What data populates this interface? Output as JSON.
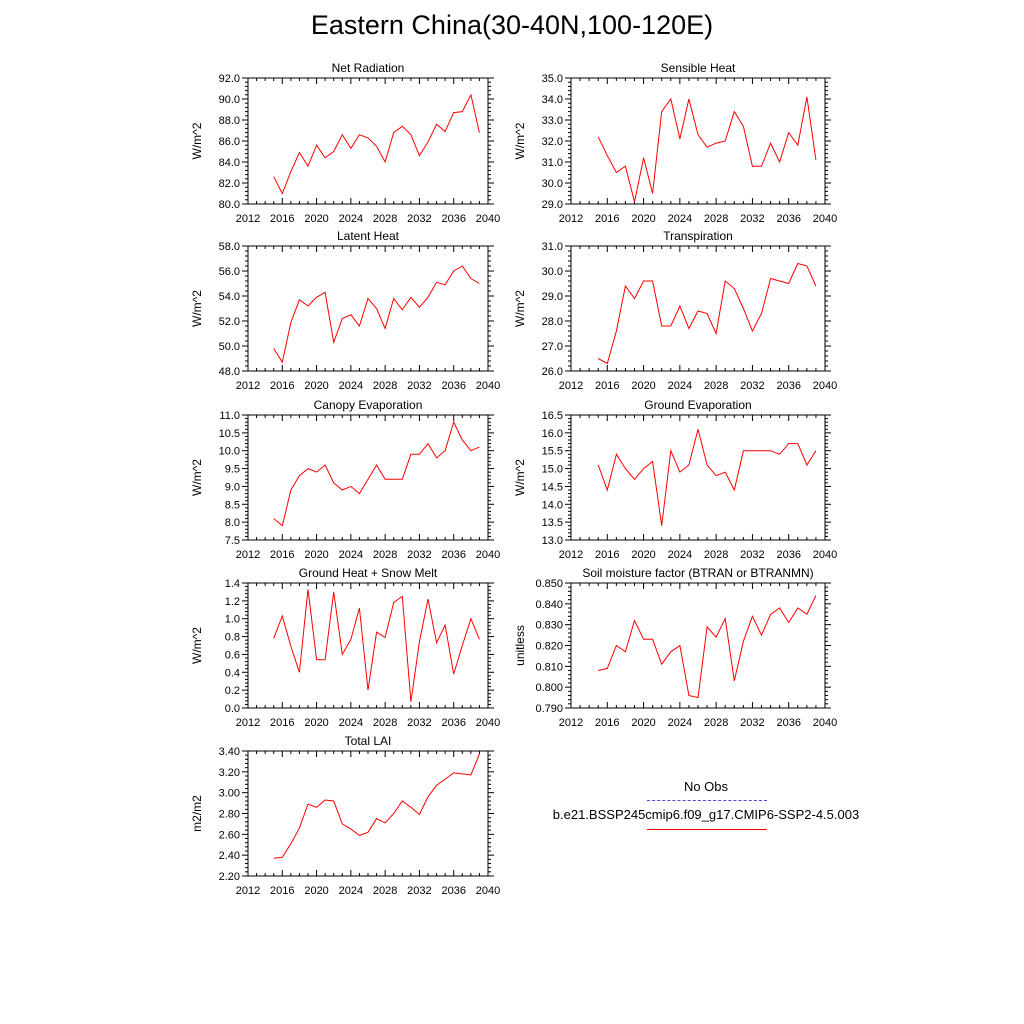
{
  "title": "Eastern China(30-40N,100-120E)",
  "legend": {
    "obs_label": "No Obs",
    "model_label": "b.e21.BSSP245cmip6.f09_g17.CMIP6-SSP2-4.5.003",
    "obs_color": "#4b4bdc",
    "model_color": "#ff0000"
  },
  "chart_data": [
    {
      "type": "line",
      "title": "Net Radiation",
      "ylabel": "W/m^2",
      "xlim": [
        2012,
        2040
      ],
      "ylim": [
        80.0,
        92.0
      ],
      "xticks": [
        "2012",
        "2016",
        "2020",
        "2024",
        "2028",
        "2032",
        "2036",
        "2040"
      ],
      "yticks": [
        "80.0",
        "82.0",
        "84.0",
        "86.0",
        "88.0",
        "90.0",
        "92.0"
      ],
      "x": [
        2015,
        2016,
        2017,
        2018,
        2019,
        2020,
        2021,
        2022,
        2023,
        2024,
        2025,
        2026,
        2027,
        2028,
        2029,
        2030,
        2031,
        2032,
        2033,
        2034,
        2035,
        2036,
        2037,
        2038,
        2039
      ],
      "series": [
        {
          "values": [
            82.6,
            81.0,
            83.1,
            84.9,
            83.6,
            85.6,
            84.4,
            85.0,
            86.6,
            85.3,
            86.6,
            86.3,
            85.5,
            84.0,
            86.8,
            87.4,
            86.6,
            84.6,
            85.9,
            87.6,
            86.9,
            88.7,
            88.8,
            90.4,
            86.8
          ]
        }
      ]
    },
    {
      "type": "line",
      "title": "Sensible Heat",
      "ylabel": "W/m^2",
      "xlim": [
        2012,
        2040
      ],
      "ylim": [
        29.0,
        35.0
      ],
      "xticks": [
        "2012",
        "2016",
        "2020",
        "2024",
        "2028",
        "2032",
        "2036",
        "2040"
      ],
      "yticks": [
        "29.0",
        "30.0",
        "31.0",
        "32.0",
        "33.0",
        "34.0",
        "35.0"
      ],
      "x": [
        2015,
        2016,
        2017,
        2018,
        2019,
        2020,
        2021,
        2022,
        2023,
        2024,
        2025,
        2026,
        2027,
        2028,
        2029,
        2030,
        2031,
        2032,
        2033,
        2034,
        2035,
        2036,
        2037,
        2038,
        2039
      ],
      "series": [
        {
          "values": [
            32.2,
            31.3,
            30.5,
            30.8,
            29.1,
            31.2,
            29.5,
            33.4,
            34.0,
            32.1,
            34.0,
            32.3,
            31.7,
            31.9,
            32.0,
            33.4,
            32.7,
            30.8,
            30.8,
            31.9,
            31.0,
            32.4,
            31.8,
            34.1,
            31.1
          ]
        }
      ]
    },
    {
      "type": "line",
      "title": "Latent Heat",
      "ylabel": "W/m^2",
      "xlim": [
        2012,
        2040
      ],
      "ylim": [
        48.0,
        58.0
      ],
      "xticks": [
        "2012",
        "2016",
        "2020",
        "2024",
        "2028",
        "2032",
        "2036",
        "2040"
      ],
      "yticks": [
        "48.0",
        "50.0",
        "52.0",
        "54.0",
        "56.0",
        "58.0"
      ],
      "x": [
        2015,
        2016,
        2017,
        2018,
        2019,
        2020,
        2021,
        2022,
        2023,
        2024,
        2025,
        2026,
        2027,
        2028,
        2029,
        2030,
        2031,
        2032,
        2033,
        2034,
        2035,
        2036,
        2037,
        2038,
        2039
      ],
      "series": [
        {
          "values": [
            49.8,
            48.7,
            51.9,
            53.7,
            53.2,
            53.9,
            54.3,
            50.3,
            52.2,
            52.5,
            51.6,
            53.8,
            53.0,
            51.4,
            53.8,
            52.9,
            53.9,
            53.1,
            53.9,
            55.1,
            54.9,
            56.0,
            56.4,
            55.4,
            55.0
          ]
        }
      ]
    },
    {
      "type": "line",
      "title": "Transpiration",
      "ylabel": "W/m^2",
      "xlim": [
        2012,
        2040
      ],
      "ylim": [
        26.0,
        31.0
      ],
      "xticks": [
        "2012",
        "2016",
        "2020",
        "2024",
        "2028",
        "2032",
        "2036",
        "2040"
      ],
      "yticks": [
        "26.0",
        "27.0",
        "28.0",
        "29.0",
        "30.0",
        "31.0"
      ],
      "x": [
        2015,
        2016,
        2017,
        2018,
        2019,
        2020,
        2021,
        2022,
        2023,
        2024,
        2025,
        2026,
        2027,
        2028,
        2029,
        2030,
        2031,
        2032,
        2033,
        2034,
        2035,
        2036,
        2037,
        2038,
        2039
      ],
      "series": [
        {
          "values": [
            26.5,
            26.3,
            27.6,
            29.4,
            28.9,
            29.6,
            29.6,
            27.8,
            27.8,
            28.6,
            27.7,
            28.4,
            28.3,
            27.5,
            29.6,
            29.3,
            28.5,
            27.6,
            28.3,
            29.7,
            29.6,
            29.5,
            30.3,
            30.2,
            29.4
          ]
        }
      ]
    },
    {
      "type": "line",
      "title": "Canopy Evaporation",
      "ylabel": "W/m^2",
      "xlim": [
        2012,
        2040
      ],
      "ylim": [
        7.5,
        11.0
      ],
      "xticks": [
        "2012",
        "2016",
        "2020",
        "2024",
        "2028",
        "2032",
        "2036",
        "2040"
      ],
      "yticks": [
        "7.5",
        "8.0",
        "8.5",
        "9.0",
        "9.5",
        "10.0",
        "10.5",
        "11.0"
      ],
      "x": [
        2015,
        2016,
        2017,
        2018,
        2019,
        2020,
        2021,
        2022,
        2023,
        2024,
        2025,
        2026,
        2027,
        2028,
        2029,
        2030,
        2031,
        2032,
        2033,
        2034,
        2035,
        2036,
        2037,
        2038,
        2039
      ],
      "series": [
        {
          "values": [
            8.1,
            7.9,
            8.9,
            9.3,
            9.5,
            9.4,
            9.6,
            9.1,
            8.9,
            9.0,
            8.8,
            9.2,
            9.6,
            9.2,
            9.2,
            9.2,
            9.9,
            9.9,
            10.2,
            9.8,
            10.0,
            10.8,
            10.3,
            10.0,
            10.1
          ]
        }
      ]
    },
    {
      "type": "line",
      "title": "Ground Evaporation",
      "ylabel": "W/m^2",
      "xlim": [
        2012,
        2040
      ],
      "ylim": [
        13.0,
        16.5
      ],
      "xticks": [
        "2012",
        "2016",
        "2020",
        "2024",
        "2028",
        "2032",
        "2036",
        "2040"
      ],
      "yticks": [
        "13.0",
        "13.5",
        "14.0",
        "14.5",
        "15.0",
        "15.5",
        "16.0",
        "16.5"
      ],
      "x": [
        2015,
        2016,
        2017,
        2018,
        2019,
        2020,
        2021,
        2022,
        2023,
        2024,
        2025,
        2026,
        2027,
        2028,
        2029,
        2030,
        2031,
        2032,
        2033,
        2034,
        2035,
        2036,
        2037,
        2038,
        2039
      ],
      "series": [
        {
          "values": [
            15.1,
            14.4,
            15.4,
            15.0,
            14.7,
            15.0,
            15.2,
            13.4,
            15.5,
            14.9,
            15.1,
            16.1,
            15.1,
            14.8,
            14.9,
            14.4,
            15.5,
            15.5,
            15.5,
            15.5,
            15.4,
            15.7,
            15.7,
            15.1,
            15.5
          ]
        }
      ]
    },
    {
      "type": "line",
      "title": "Ground Heat + Snow Melt",
      "ylabel": "W/m^2",
      "xlim": [
        2012,
        2040
      ],
      "ylim": [
        0.0,
        1.4
      ],
      "xticks": [
        "2012",
        "2016",
        "2020",
        "2024",
        "2028",
        "2032",
        "2036",
        "2040"
      ],
      "yticks": [
        "0.0",
        "0.2",
        "0.4",
        "0.6",
        "0.8",
        "1.0",
        "1.2",
        "1.4"
      ],
      "x": [
        2015,
        2016,
        2017,
        2018,
        2019,
        2020,
        2021,
        2022,
        2023,
        2024,
        2025,
        2026,
        2027,
        2028,
        2029,
        2030,
        2031,
        2032,
        2033,
        2034,
        2035,
        2036,
        2037,
        2038,
        2039
      ],
      "series": [
        {
          "values": [
            0.78,
            1.03,
            0.69,
            0.4,
            1.33,
            0.54,
            0.54,
            1.3,
            0.6,
            0.77,
            1.12,
            0.2,
            0.85,
            0.79,
            1.18,
            1.25,
            0.07,
            0.74,
            1.22,
            0.73,
            0.93,
            0.38,
            0.7,
            1.0,
            0.77
          ]
        }
      ]
    },
    {
      "type": "line",
      "title": "Soil moisture factor (BTRAN or BTRANMN)",
      "ylabel": "unitless",
      "xlim": [
        2012,
        2040
      ],
      "ylim": [
        0.79,
        0.85
      ],
      "xticks": [
        "2012",
        "2016",
        "2020",
        "2024",
        "2028",
        "2032",
        "2036",
        "2040"
      ],
      "yticks": [
        "0.790",
        "0.800",
        "0.810",
        "0.820",
        "0.830",
        "0.840",
        "0.850"
      ],
      "x": [
        2015,
        2016,
        2017,
        2018,
        2019,
        2020,
        2021,
        2022,
        2023,
        2024,
        2025,
        2026,
        2027,
        2028,
        2029,
        2030,
        2031,
        2032,
        2033,
        2034,
        2035,
        2036,
        2037,
        2038,
        2039
      ],
      "series": [
        {
          "values": [
            0.808,
            0.809,
            0.82,
            0.817,
            0.832,
            0.823,
            0.823,
            0.811,
            0.817,
            0.82,
            0.796,
            0.795,
            0.829,
            0.824,
            0.833,
            0.803,
            0.822,
            0.834,
            0.825,
            0.835,
            0.838,
            0.831,
            0.838,
            0.835,
            0.844
          ]
        }
      ]
    },
    {
      "type": "line",
      "title": "Total LAI",
      "ylabel": "m2/m2",
      "xlim": [
        2012,
        2040
      ],
      "ylim": [
        2.2,
        3.4
      ],
      "xticks": [
        "2012",
        "2016",
        "2020",
        "2024",
        "2028",
        "2032",
        "2036",
        "2040"
      ],
      "yticks": [
        "2.20",
        "2.40",
        "2.60",
        "2.80",
        "3.00",
        "3.20",
        "3.40"
      ],
      "x": [
        2015,
        2016,
        2017,
        2018,
        2019,
        2020,
        2021,
        2022,
        2023,
        2024,
        2025,
        2026,
        2027,
        2028,
        2029,
        2030,
        2031,
        2032,
        2033,
        2034,
        2035,
        2036,
        2037,
        2038,
        2039
      ],
      "series": [
        {
          "values": [
            2.37,
            2.38,
            2.51,
            2.66,
            2.89,
            2.86,
            2.93,
            2.92,
            2.7,
            2.65,
            2.59,
            2.62,
            2.75,
            2.71,
            2.8,
            2.92,
            2.86,
            2.79,
            2.96,
            3.07,
            3.13,
            3.19,
            3.18,
            3.17,
            3.37
          ]
        }
      ]
    }
  ]
}
